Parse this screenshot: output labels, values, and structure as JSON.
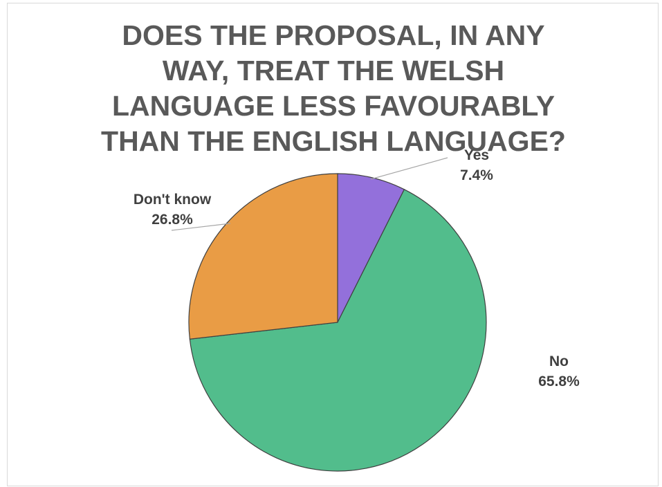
{
  "chart_data": {
    "type": "pie",
    "title_lines": [
      "DOES THE PROPOSAL, IN ANY",
      "WAY, TREAT THE WELSH",
      "LANGUAGE LESS FAVOURABLY",
      "THAN THE ENGLISH LANGUAGE?"
    ],
    "slices": [
      {
        "label": "Yes",
        "value": 7.4,
        "value_label": "7.4%",
        "color": "#9370db"
      },
      {
        "label": "No",
        "value": 65.8,
        "value_label": "65.8%",
        "color": "#52bd8c"
      },
      {
        "label": "Don't know",
        "value": 26.8,
        "value_label": "26.8%",
        "color": "#e99c45"
      }
    ],
    "start": "12 o'clock",
    "direction": "clockwise",
    "slice_border_color": "#404040",
    "leader_line_color": "#a6a6a6"
  }
}
